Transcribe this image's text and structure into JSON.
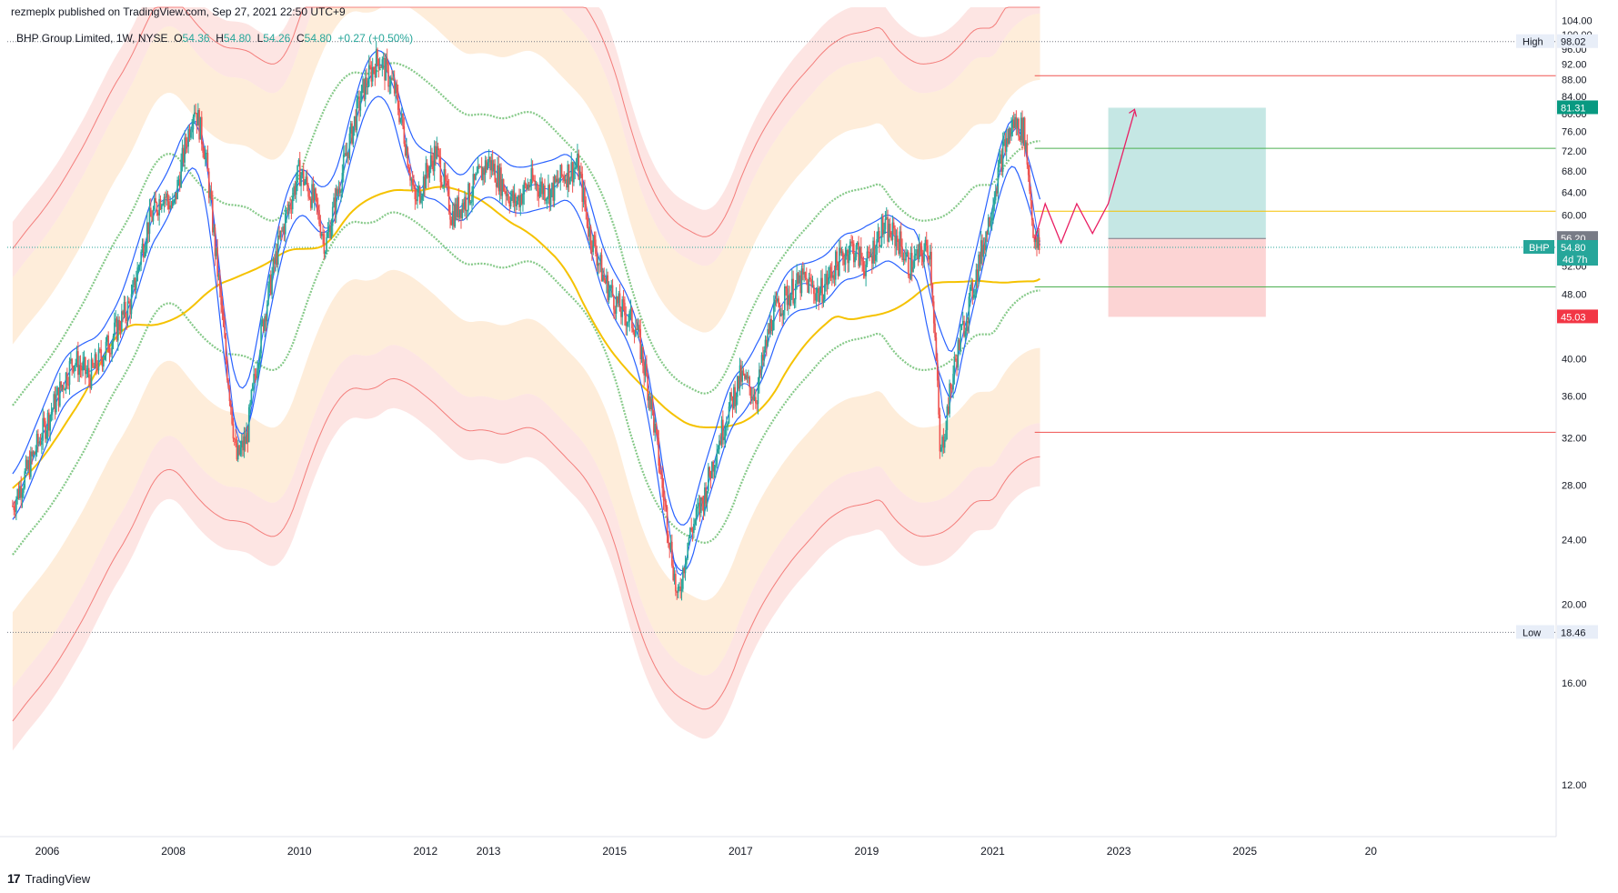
{
  "header": {
    "published": "rezmeplx published on TradingView.com, Sep 27, 2021 22:50 UTC+9"
  },
  "symbol": {
    "name": "BHP Group Limited, 1W, NYSE",
    "o_label": "O",
    "o": "54.36",
    "h_label": "H",
    "h": "54.80",
    "l_label": "L",
    "l": "54.26",
    "c_label": "C",
    "c": "54.80",
    "change": "+0.27 (+0.50%)"
  },
  "footer": {
    "brand": "TradingView"
  },
  "colors": {
    "candle_up": "#26a69a",
    "candle_down": "#ef5350",
    "bands": "#2962ff",
    "ma_yellow": "#f5c200",
    "cycle_green": "#66bb6a",
    "cycle_red": "#ef5350",
    "tp_zone": "#b2dfdb",
    "sl_zone": "#fbcdcd"
  },
  "chart_data": {
    "type": "line",
    "title": "BHP Group Limited, 1W, NYSE",
    "x_ticks": [
      "2006",
      "2008",
      "2010",
      "2012",
      "2013",
      "2015",
      "2017",
      "2019",
      "2021",
      "2023",
      "2025",
      "20"
    ],
    "y_ticks": [
      "104.00",
      "100.00",
      "96.00",
      "92.00",
      "88.00",
      "84.00",
      "80.00",
      "76.00",
      "72.00",
      "68.00",
      "64.00",
      "60.00",
      "52.00",
      "48.00",
      "40.00",
      "36.00",
      "32.00",
      "28.00",
      "24.00",
      "20.00",
      "16.00",
      "12.00"
    ],
    "ylim": [
      10.5,
      108
    ],
    "series": [
      {
        "x": [
          "2005-06",
          "2005-10",
          "2006-03",
          "2006-06",
          "2006-09",
          "2007-01",
          "2007-05",
          "2007-08",
          "2007-11",
          "2008-01",
          "2008-05",
          "2008-07",
          "2008-09",
          "2008-11",
          "2009-01",
          "2009-03",
          "2009-06",
          "2009-09",
          "2010-01",
          "2010-04",
          "2010-06",
          "2010-09",
          "2011-01",
          "2011-04",
          "2011-07",
          "2011-09",
          "2011-11",
          "2012-03",
          "2012-06",
          "2012-09",
          "2013-01",
          "2013-04",
          "2013-06",
          "2013-09",
          "2014-01",
          "2014-03",
          "2014-06",
          "2014-08",
          "2014-11",
          "2015-02",
          "2015-05",
          "2015-08",
          "2015-10",
          "2016-01",
          "2016-03",
          "2016-06",
          "2016-09",
          "2017-01",
          "2017-04",
          "2017-07",
          "2017-10",
          "2018-01",
          "2018-04",
          "2018-07",
          "2018-10",
          "2019-01",
          "2019-04",
          "2019-07",
          "2019-09",
          "2020-01",
          "2020-03",
          "2020-06",
          "2020-09",
          "2020-12",
          "2021-03",
          "2021-05",
          "2021-07",
          "2021-09"
        ],
        "y": [
          26,
          30,
          36,
          40,
          38,
          42,
          47,
          58,
          64,
          61,
          82,
          72,
          54,
          40,
          30,
          32,
          44,
          55,
          68,
          62,
          55,
          67,
          85,
          94,
          86,
          75,
          62,
          72,
          60,
          63,
          70,
          65,
          62,
          66,
          64,
          67,
          69,
          58,
          50,
          46,
          44,
          35,
          28,
          20,
          24,
          27,
          32,
          38,
          36,
          45,
          48,
          50,
          48,
          52,
          55,
          52,
          58,
          56,
          52,
          55,
          30,
          40,
          48,
          58,
          72,
          78,
          76,
          54.8
        ]
      },
      {
        "name": "High",
        "x": [
          "2005-06",
          "2021-09"
        ],
        "y": [
          98.02,
          98.02
        ]
      },
      {
        "name": "Low",
        "x": [
          "2005-06",
          "2021-09"
        ],
        "y": [
          18.46,
          18.46
        ]
      }
    ],
    "price_tags": [
      {
        "value": 81.31,
        "label": "81.31",
        "color": "#089981"
      },
      {
        "value": 56.2,
        "label": "56.20",
        "color": "#787b86"
      },
      {
        "value": 54.8,
        "label": "54.80",
        "color": "#26a69a",
        "symbol": "BHP",
        "countdown": "4d 7h"
      },
      {
        "value": 45.03,
        "label": "45.03",
        "color": "#f23645"
      },
      {
        "value": 98.02,
        "label": "98.02",
        "color": "#e8eef8",
        "text": "High"
      },
      {
        "value": 18.46,
        "label": "18.46",
        "color": "#e8eef8",
        "text": "Low"
      }
    ],
    "levels": {
      "red_upper": 89.0,
      "green_upper": 72.5,
      "yellow_mid": 60.7,
      "green_lower": 49.0,
      "red_lower": 32.5
    },
    "position": {
      "entry": 56.2,
      "target": 81.31,
      "stop": 45.03,
      "from": "2022-11",
      "to": "2025-05"
    },
    "projection": {
      "x": [
        "2021-09",
        "2021-11",
        "2022-02",
        "2022-05",
        "2022-08",
        "2022-11",
        "2023-04"
      ],
      "y": [
        56,
        62,
        55.5,
        62,
        57,
        62,
        80.5
      ]
    }
  }
}
